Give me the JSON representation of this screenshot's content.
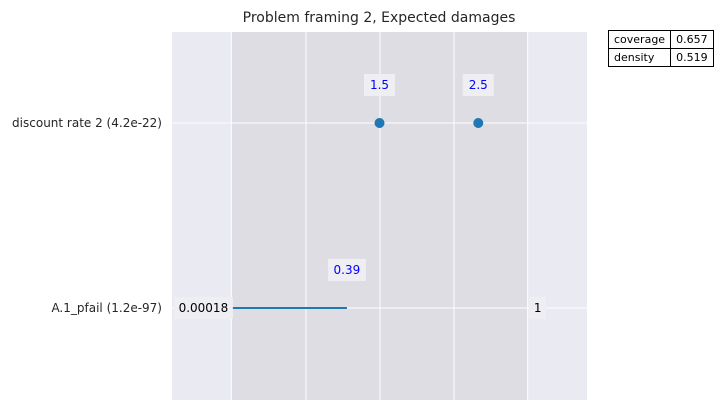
{
  "chart_data": {
    "type": "scatter",
    "title": "Problem framing 2, Expected damages",
    "rows": [
      {
        "label": "discount rate 2 (4.2e-22)",
        "kind": "points",
        "values": [
          1.5,
          2.5
        ],
        "value_labels": [
          "1.5",
          "2.5"
        ]
      },
      {
        "label": "A.1_pfail (1.2e-97)",
        "kind": "range",
        "low": 0.00018,
        "high": 0.39,
        "low_label": "0.00018",
        "high_label": "0.39",
        "domain_max_label": "1"
      }
    ],
    "box": {
      "low": 0.00018,
      "high": 1
    },
    "grid": true,
    "stats_table": [
      {
        "name": "coverage",
        "value": "0.657"
      },
      {
        "name": "density",
        "value": "0.519"
      }
    ]
  },
  "colors": {
    "plot_background": "#eaeaf2",
    "box_shade": "#dedde3",
    "marker": "#1f77b4",
    "range_line": "#1f77b4",
    "label_box": "#efeef3",
    "value_blue": "#0000ff"
  }
}
